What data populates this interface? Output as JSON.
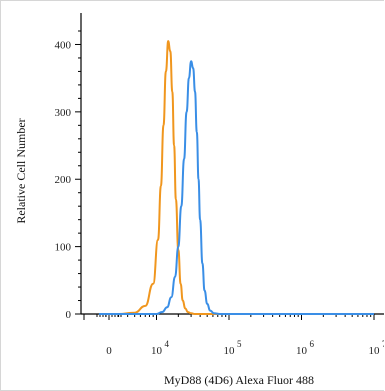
{
  "chart_data": {
    "type": "line",
    "xlabel": "MyD88 (4D6) Alexa Fluor 488",
    "ylabel": "Relative Cell Number",
    "x_scale": "biexponential",
    "ylim": [
      0,
      420
    ],
    "y_ticks": [
      0,
      100,
      200,
      300,
      400
    ],
    "x_ticks": [
      {
        "value": 0,
        "base": "0",
        "exp": ""
      },
      {
        "value": 10000,
        "base": "10",
        "exp": "4"
      },
      {
        "value": 100000,
        "base": "10",
        "exp": "5"
      },
      {
        "value": 1000000,
        "base": "10",
        "exp": "6"
      },
      {
        "value": 10000000,
        "base": "10",
        "exp": "7"
      }
    ],
    "grid": false,
    "series": [
      {
        "color": "#f0961e",
        "x": [
          0,
          3000,
          5000,
          7000,
          9000,
          10500,
          11500,
          12500,
          13500,
          14500,
          15500,
          16500,
          17500,
          18500,
          20000,
          21500,
          23000,
          25000,
          27000,
          30000,
          34000,
          40000,
          60000,
          10000000
        ],
        "values": [
          0,
          0,
          2,
          12,
          45,
          110,
          190,
          280,
          360,
          405,
          390,
          330,
          250,
          170,
          95,
          45,
          20,
          8,
          3,
          1,
          0,
          0,
          0,
          0
        ]
      },
      {
        "color": "#3a8ee6",
        "x": [
          0,
          10000,
          12000,
          14000,
          16000,
          18000,
          20000,
          22000,
          24000,
          26000,
          28000,
          30000,
          32000,
          34000,
          36000,
          38000,
          40000,
          43000,
          46000,
          50000,
          55000,
          62000,
          75000,
          10000000
        ],
        "values": [
          0,
          0,
          3,
          10,
          25,
          55,
          100,
          160,
          230,
          300,
          350,
          375,
          365,
          330,
          270,
          200,
          140,
          75,
          35,
          15,
          5,
          1,
          0,
          0
        ]
      }
    ]
  }
}
